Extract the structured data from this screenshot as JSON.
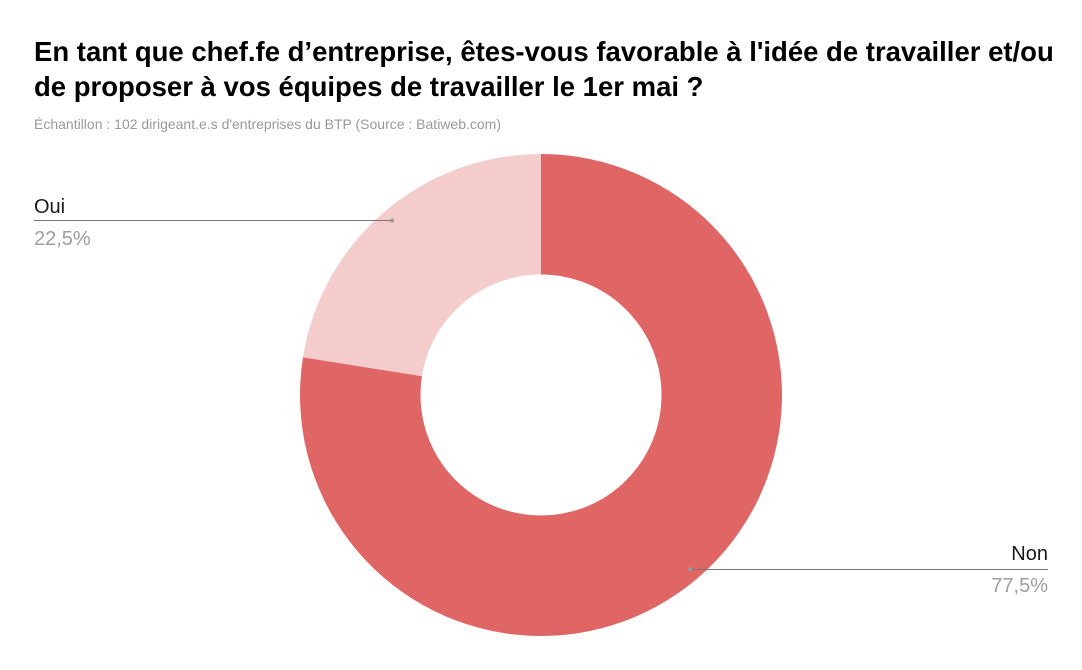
{
  "header": {
    "title": "En tant que chef.fe d’entreprise, êtes-vous favorable à l'idée de travailler et/ou de proposer à vos équipes de travailler le 1er mai ?",
    "subtitle": "Échantillon : 102 dirigeant.e.s d'entreprises du BTP (Source : Batiweb.com)"
  },
  "labels": {
    "oui": {
      "name": "Oui",
      "value": "22,5%"
    },
    "non": {
      "name": "Non",
      "value": "77,5%"
    }
  },
  "colors": {
    "oui": "#f4cccc",
    "non": "#e06666",
    "leader": "#777777",
    "dot": "#999999"
  },
  "chart_data": {
    "type": "pie",
    "subtype": "donut",
    "title": "En tant que chef.fe d’entreprise, êtes-vous favorable à l'idée de travailler et/ou de proposer à vos équipes de travailler le 1er mai ?",
    "subtitle": "Échantillon : 102 dirigeant.e.s d'entreprises du BTP (Source : Batiweb.com)",
    "categories": [
      "Non",
      "Oui"
    ],
    "values": [
      77.5,
      22.5
    ],
    "value_labels": [
      "77,5%",
      "22,5%"
    ],
    "colors": [
      "#e06666",
      "#f4cccc"
    ],
    "start_angle_deg": 0,
    "direction": "clockwise",
    "legend": "leader-line labels"
  }
}
